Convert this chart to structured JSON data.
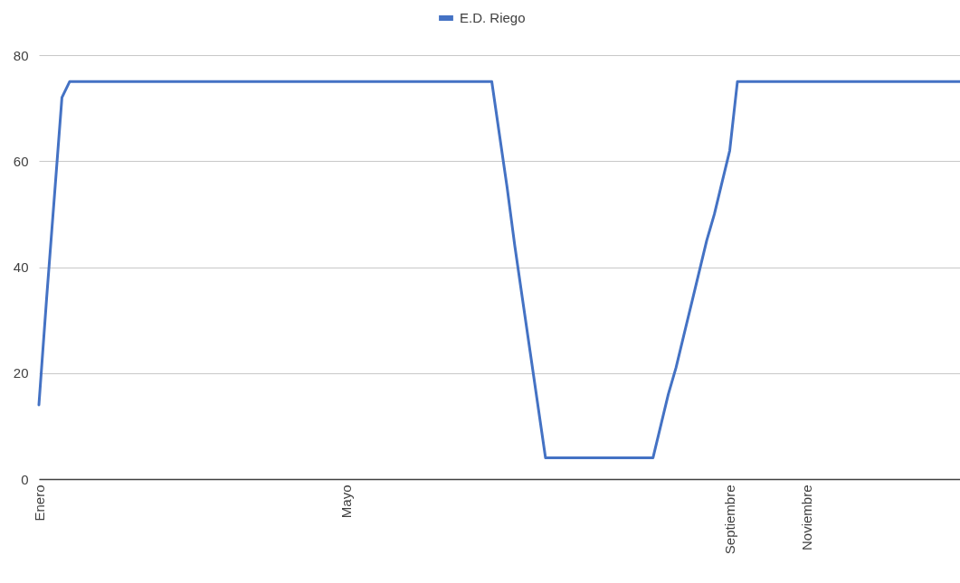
{
  "chart_data": {
    "type": "line",
    "categories": [
      "Enero",
      null,
      null,
      null,
      null,
      null,
      null,
      null,
      null,
      null,
      null,
      null,
      null,
      null,
      null,
      null,
      null,
      null,
      null,
      null,
      null,
      null,
      null,
      null,
      null,
      null,
      null,
      null,
      null,
      null,
      null,
      null,
      null,
      null,
      null,
      null,
      null,
      null,
      null,
      null,
      "Mayo",
      null,
      null,
      null,
      null,
      null,
      null,
      null,
      null,
      null,
      null,
      null,
      null,
      null,
      null,
      null,
      null,
      null,
      null,
      null,
      null,
      null,
      null,
      null,
      null,
      null,
      null,
      null,
      null,
      null,
      null,
      null,
      null,
      null,
      null,
      null,
      null,
      null,
      null,
      null,
      null,
      null,
      null,
      null,
      null,
      null,
      null,
      null,
      null,
      null,
      "Septiembre",
      null,
      null,
      null,
      null,
      null,
      null,
      null,
      null,
      null,
      "Noviembre",
      null,
      null,
      null,
      null,
      null,
      null,
      null,
      null,
      null,
      null,
      null,
      null,
      null,
      null,
      null,
      null,
      null,
      null,
      null,
      null
    ],
    "series": [
      {
        "name": "E.D. Riego",
        "color": "#4472c4",
        "values": [
          14,
          34,
          53,
          72,
          75,
          75,
          75,
          75,
          75,
          75,
          75,
          75,
          75,
          75,
          75,
          75,
          75,
          75,
          75,
          75,
          75,
          75,
          75,
          75,
          75,
          75,
          75,
          75,
          75,
          75,
          75,
          75,
          75,
          75,
          75,
          75,
          75,
          75,
          75,
          75,
          75,
          75,
          75,
          75,
          75,
          75,
          75,
          75,
          75,
          75,
          75,
          75,
          75,
          75,
          75,
          75,
          75,
          75,
          75,
          75,
          65,
          55,
          44,
          34,
          24,
          14,
          4,
          4,
          4,
          4,
          4,
          4,
          4,
          4,
          4,
          4,
          4,
          4,
          4,
          4,
          4,
          10,
          16,
          21,
          27,
          33,
          39,
          45,
          50,
          56,
          62,
          75,
          75,
          75,
          75,
          75,
          75,
          75,
          75,
          75,
          75,
          75,
          75,
          75,
          75,
          75,
          75,
          75,
          75,
          75,
          75,
          75,
          75,
          75,
          75,
          75,
          75,
          75,
          75,
          75,
          75
        ]
      }
    ],
    "ylim": [
      0,
      80
    ],
    "yticks": [
      0,
      20,
      40,
      60,
      80
    ],
    "grid": "y",
    "legend": "top",
    "line_style": "solid",
    "marker": "none"
  }
}
